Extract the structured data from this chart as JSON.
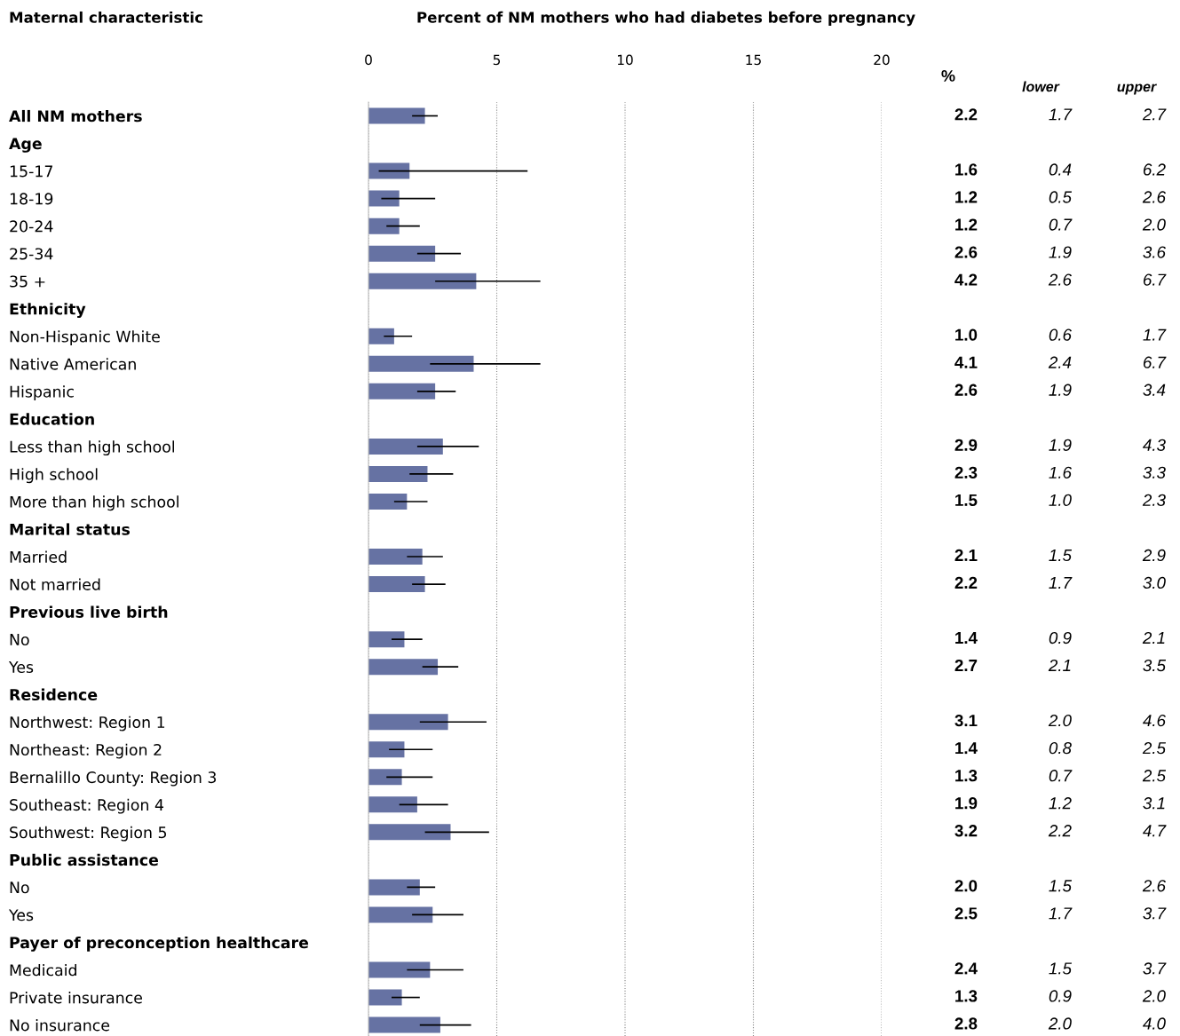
{
  "chart_data": {
    "type": "bar",
    "orientation": "horizontal",
    "title": "Percent of NM mothers who had diabetes before pregnancy",
    "categories": [
      "All NM mothers",
      "Age",
      "15-17",
      "18-19",
      "20-24",
      "25-34",
      "35 +",
      "Ethnicity",
      "Non-Hispanic White",
      "Native American",
      "Hispanic",
      "Education",
      "Less than high school",
      "High school",
      "More than high school",
      "Marital status",
      "Married",
      "Not married",
      "Previous live birth",
      "No",
      "Yes",
      "Residence",
      "Northwest: Region 1",
      "Northeast: Region 2",
      "Bernalillo County: Region 3",
      "Southeast: Region 4",
      "Southwest: Region 5",
      "Public assistance",
      "No",
      "Yes",
      "Payer of preconception healthcare",
      "Medicaid",
      "Private insurance",
      "No insurance"
    ],
    "values": [
      2.2,
      null,
      1.6,
      1.2,
      1.2,
      2.6,
      4.2,
      null,
      1.0,
      4.1,
      2.6,
      null,
      2.9,
      2.3,
      1.5,
      null,
      2.1,
      2.2,
      null,
      1.4,
      2.7,
      null,
      3.1,
      1.4,
      1.3,
      1.9,
      3.2,
      null,
      2.0,
      2.5,
      null,
      2.4,
      1.3,
      2.8
    ],
    "errors": [
      [
        1.7,
        2.7
      ],
      null,
      [
        0.4,
        6.2
      ],
      [
        0.5,
        2.6
      ],
      [
        0.7,
        2.0
      ],
      [
        1.9,
        3.6
      ],
      [
        2.6,
        6.7
      ],
      null,
      [
        0.6,
        1.7
      ],
      [
        2.4,
        6.7
      ],
      [
        1.9,
        3.4
      ],
      null,
      [
        1.9,
        4.3
      ],
      [
        1.6,
        3.3
      ],
      [
        1.0,
        2.3
      ],
      null,
      [
        1.5,
        2.9
      ],
      [
        1.7,
        3.0
      ],
      null,
      [
        0.9,
        2.1
      ],
      [
        2.1,
        3.5
      ],
      null,
      [
        2.0,
        4.6
      ],
      [
        0.8,
        2.5
      ],
      [
        0.7,
        2.5
      ],
      [
        1.2,
        3.1
      ],
      [
        2.2,
        4.7
      ],
      null,
      [
        1.5,
        2.6
      ],
      [
        1.7,
        3.7
      ],
      null,
      [
        1.5,
        3.7
      ],
      [
        0.9,
        2.0
      ],
      [
        2.0,
        4.0
      ]
    ],
    "color": "#6672a3",
    "xlim": [
      0,
      20
    ],
    "xticks": [
      0,
      5,
      10,
      15,
      20
    ],
    "grid": "x",
    "annotations": [
      "Maternal characteristic",
      "%",
      "lower",
      "upper",
      "2.2",
      "1.7",
      "2.7",
      "1.6",
      "0.4",
      "6.2",
      "1.2",
      "0.5",
      "2.6",
      "1.2",
      "0.7",
      "2.0",
      "2.6",
      "1.9",
      "3.6",
      "4.2",
      "2.6",
      "6.7",
      "1.0",
      "0.6",
      "1.7",
      "4.1",
      "2.4",
      "6.7",
      "2.6",
      "1.9",
      "3.4",
      "2.9",
      "1.9",
      "4.3",
      "2.3",
      "1.6",
      "3.3",
      "1.5",
      "1.0",
      "2.3",
      "2.1",
      "1.5",
      "2.9",
      "2.2",
      "1.7",
      "3.0",
      "1.4",
      "0.9",
      "2.1",
      "2.7",
      "2.1",
      "3.5",
      "3.1",
      "2.0",
      "4.6",
      "1.4",
      "0.8",
      "2.5",
      "1.3",
      "0.7",
      "2.5",
      "1.9",
      "1.2",
      "3.1",
      "3.2",
      "2.2",
      "4.7",
      "2.0",
      "1.5",
      "2.6",
      "2.5",
      "1.7",
      "3.7",
      "2.4",
      "1.5",
      "3.7",
      "1.3",
      "0.9",
      "2.0",
      "2.8",
      "2.0",
      "4.0"
    ]
  }
}
